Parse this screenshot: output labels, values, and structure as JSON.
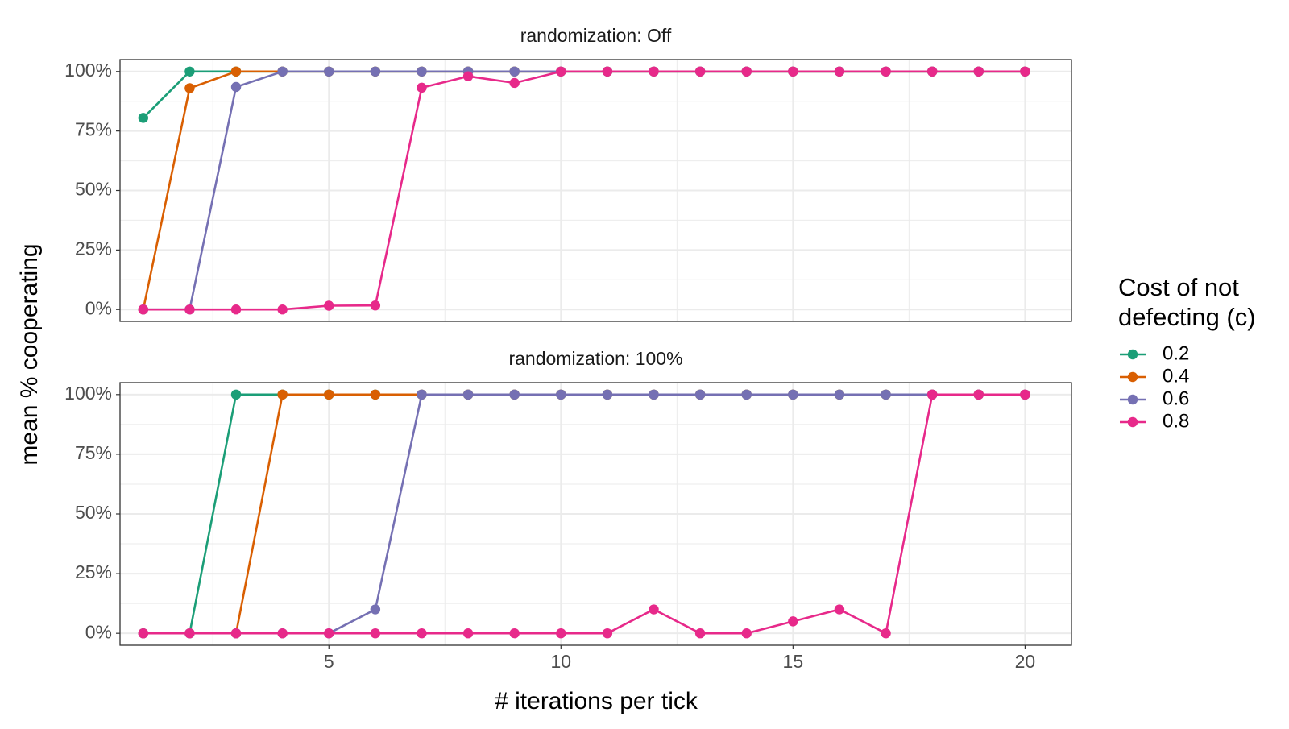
{
  "chart_data": {
    "type": "line",
    "xlabel": "# iterations per tick",
    "ylabel": "mean % cooperating",
    "xlim": [
      0.5,
      21.0
    ],
    "ylim": [
      -0.05,
      1.05
    ],
    "x_ticks": [
      5,
      10,
      15,
      20
    ],
    "x_tick_labels": [
      "5",
      "10",
      "15",
      "20"
    ],
    "y_ticks": [
      0,
      0.25,
      0.5,
      0.75,
      1
    ],
    "y_tick_labels": [
      "0%",
      "25%",
      "50%",
      "75%",
      "100%"
    ],
    "grid": true,
    "legend": {
      "title_lines": [
        "Cost of not",
        "defecting (c)"
      ],
      "position": "right"
    },
    "series_styles": [
      {
        "name": "0.2",
        "color": "#1b9e77"
      },
      {
        "name": "0.4",
        "color": "#d95f02"
      },
      {
        "name": "0.6",
        "color": "#7570b3"
      },
      {
        "name": "0.8",
        "color": "#e7298a"
      }
    ],
    "panels": [
      {
        "strip": "randomization: Off",
        "series": [
          {
            "name": "0.2",
            "x": [
              1,
              2,
              3,
              4,
              5,
              6,
              7,
              8,
              9,
              10,
              11,
              12,
              13,
              14,
              15,
              16,
              17,
              18,
              19,
              20
            ],
            "y": [
              0.805,
              1,
              1,
              1,
              1,
              1,
              1,
              1,
              1,
              1,
              1,
              1,
              1,
              1,
              1,
              1,
              1,
              1,
              1,
              1
            ]
          },
          {
            "name": "0.4",
            "x": [
              1,
              2,
              3,
              4,
              5,
              6,
              7,
              8,
              9,
              10,
              11,
              12,
              13,
              14,
              15,
              16,
              17,
              18,
              19,
              20
            ],
            "y": [
              0,
              0.93,
              1,
              1,
              1,
              1,
              1,
              1,
              1,
              1,
              1,
              1,
              1,
              1,
              1,
              1,
              1,
              1,
              1,
              1
            ]
          },
          {
            "name": "0.6",
            "x": [
              1,
              2,
              3,
              4,
              5,
              6,
              7,
              8,
              9,
              10,
              11,
              12,
              13,
              14,
              15,
              16,
              17,
              18,
              19,
              20
            ],
            "y": [
              0,
              0,
              0.935,
              1,
              1,
              1,
              1,
              1,
              1,
              1,
              1,
              1,
              1,
              1,
              1,
              1,
              1,
              1,
              1,
              1
            ]
          },
          {
            "name": "0.8",
            "x": [
              1,
              2,
              3,
              4,
              5,
              6,
              7,
              8,
              9,
              10,
              11,
              12,
              13,
              14,
              15,
              16,
              17,
              18,
              19,
              20
            ],
            "y": [
              0,
              0,
              0,
              0,
              0.016,
              0.017,
              0.932,
              0.98,
              0.952,
              1,
              1,
              1,
              1,
              1,
              1,
              1,
              1,
              1,
              1,
              1
            ]
          }
        ]
      },
      {
        "strip": "randomization: 100%",
        "series": [
          {
            "name": "0.2",
            "x": [
              1,
              2,
              3,
              4,
              5,
              6,
              7,
              8,
              9,
              10,
              11,
              12,
              13,
              14,
              15,
              16,
              17,
              18,
              19,
              20
            ],
            "y": [
              0,
              0,
              1,
              1,
              1,
              1,
              1,
              1,
              1,
              1,
              1,
              1,
              1,
              1,
              1,
              1,
              1,
              1,
              1,
              1
            ]
          },
          {
            "name": "0.4",
            "x": [
              1,
              2,
              3,
              4,
              5,
              6,
              7,
              8,
              9,
              10,
              11,
              12,
              13,
              14,
              15,
              16,
              17,
              18,
              19,
              20
            ],
            "y": [
              0,
              0,
              0,
              1,
              1,
              1,
              1,
              1,
              1,
              1,
              1,
              1,
              1,
              1,
              1,
              1,
              1,
              1,
              1,
              1
            ]
          },
          {
            "name": "0.6",
            "x": [
              1,
              2,
              3,
              4,
              5,
              6,
              7,
              8,
              9,
              10,
              11,
              12,
              13,
              14,
              15,
              16,
              17,
              18,
              19,
              20
            ],
            "y": [
              0,
              0,
              0,
              0,
              0,
              0.1,
              1,
              1,
              1,
              1,
              1,
              1,
              1,
              1,
              1,
              1,
              1,
              1,
              1,
              1
            ]
          },
          {
            "name": "0.8",
            "x": [
              1,
              2,
              3,
              4,
              5,
              6,
              7,
              8,
              9,
              10,
              11,
              12,
              13,
              14,
              15,
              16,
              17,
              18,
              19,
              20
            ],
            "y": [
              0,
              0,
              0,
              0,
              0,
              0,
              0,
              0,
              0,
              0,
              0,
              0.1,
              0,
              0,
              0.05,
              0.1,
              0,
              1,
              1,
              1
            ]
          }
        ]
      }
    ]
  }
}
